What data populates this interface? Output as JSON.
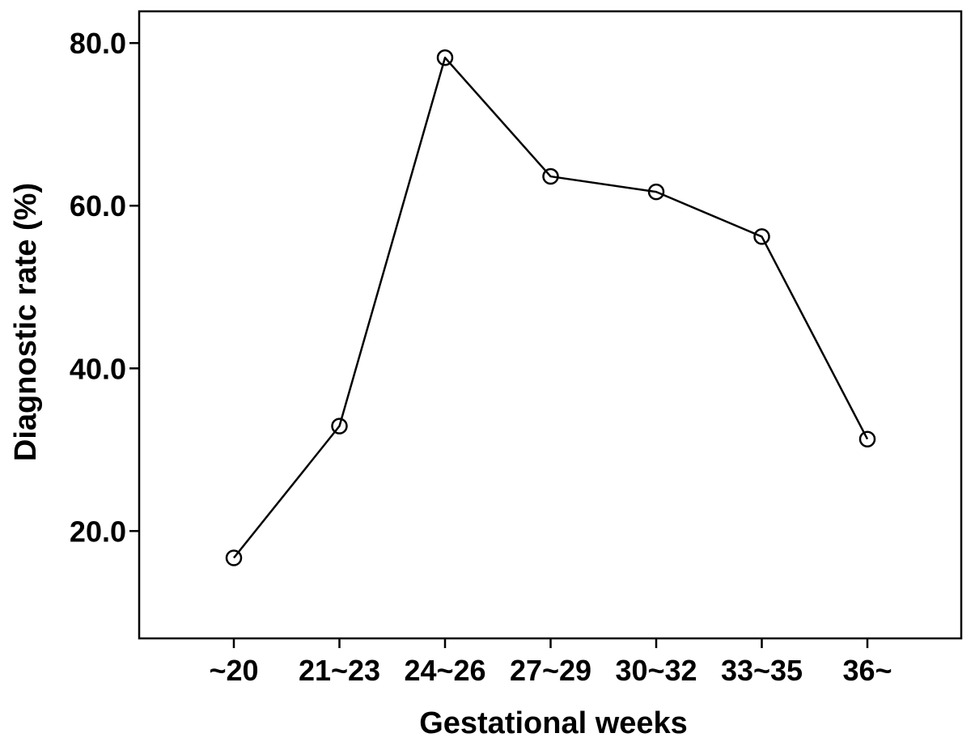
{
  "chart_data": {
    "type": "line",
    "title": "",
    "xlabel": "Gestational weeks",
    "ylabel": "Diagnostic rate (%)",
    "categories": [
      "~20",
      "21~23",
      "24~26",
      "27~29",
      "30~32",
      "33~35",
      "36~"
    ],
    "series": [
      {
        "values": [
          16.7,
          32.9,
          78.2,
          63.6,
          61.7,
          56.2,
          31.3
        ],
        "marker": "open-circle",
        "color": "#000000"
      }
    ],
    "yticks": [
      20.0,
      40.0,
      60.0,
      80.0
    ],
    "ytick_labels": [
      "20.0",
      "40.0",
      "60.0",
      "80.0"
    ],
    "ylim": [
      6.8,
      83.9
    ],
    "grid": false,
    "legend": "none"
  }
}
